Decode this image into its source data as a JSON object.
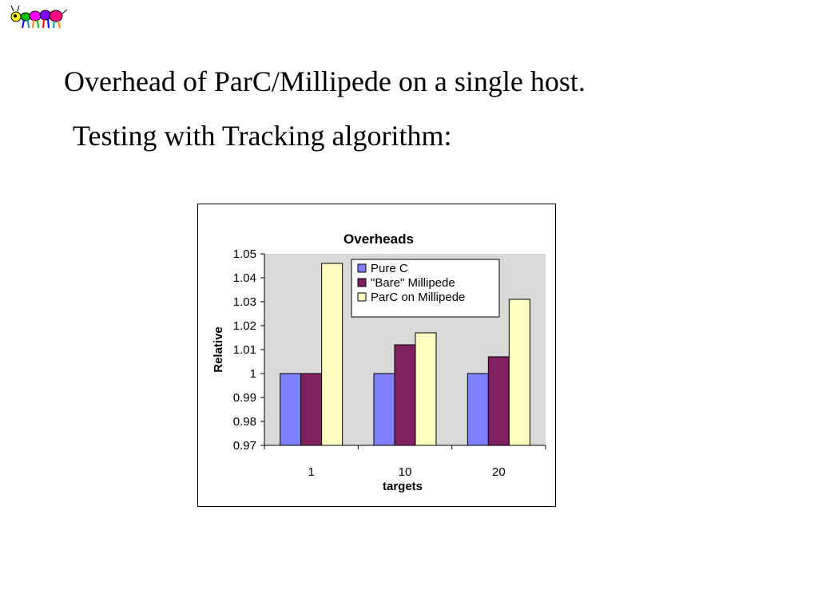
{
  "slide": {
    "title_line_1": "Overhead of ParC/Millipede on a single host.",
    "title_line_2": "Testing with Tracking algorithm:"
  },
  "logo": {
    "icon": "ant-logo-icon"
  },
  "chart_data": {
    "type": "bar",
    "title": "Overheads",
    "xlabel": "targets",
    "ylabel": "Relative",
    "categories": [
      "1",
      "10",
      "20"
    ],
    "ylim": [
      0.97,
      1.05
    ],
    "yticks": [
      0.97,
      0.98,
      0.99,
      1,
      1.01,
      1.02,
      1.03,
      1.04,
      1.05
    ],
    "ytick_labels": [
      "0.97",
      "0.98",
      "0.99",
      "1",
      "1.01",
      "1.02",
      "1.03",
      "1.04",
      "1.05"
    ],
    "grid": false,
    "plot_background": "#d9d9d9",
    "legend_position": "top-right",
    "series": [
      {
        "name": "Pure C",
        "color": "#8080ff",
        "values": [
          1.0,
          1.0,
          1.0
        ]
      },
      {
        "name": "\"Bare\" Millipede",
        "color": "#802060",
        "values": [
          1.0,
          1.012,
          1.007
        ]
      },
      {
        "name": "ParC on Millipede",
        "color": "#ffffc0",
        "values": [
          1.046,
          1.017,
          1.031
        ]
      }
    ]
  }
}
